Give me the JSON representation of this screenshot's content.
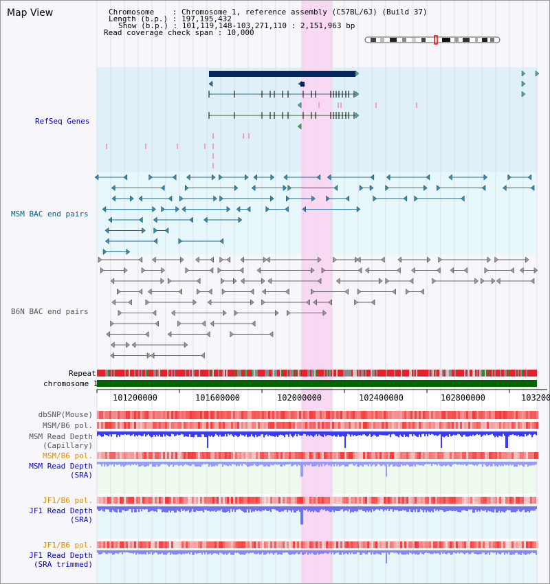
{
  "header": {
    "title": "Map View",
    "info": {
      "chromosome_key": "Chromosome",
      "chromosome_value": "Chromosome 1, reference assembly (C57BL/6J) (Build 37)",
      "length_key": "Length (b.p.)",
      "length_value": "197,195,432",
      "show_key": "Show (b.p.)",
      "show_value": "101,119,148-103,271,110 : 2,151,963 bp",
      "span_key": "Read coverage check span",
      "span_value": "10,000"
    }
  },
  "tracks": {
    "refseq": "RefSeq Genes",
    "msm_bac": "MSM BAC end pairs",
    "b6n_bac": "B6N BAC end pairs",
    "repeat": "Repeat",
    "chromosome": "chromosome 1",
    "dbsnp": "dbSNP(Mouse)",
    "msm_pol": "MSM/B6 pol.",
    "msm_depth_cap_1": "MSM Read Depth",
    "msm_depth_cap_2": "(Capillary)",
    "msm_pol_2": "MSM/B6 pol.",
    "msm_depth_sra_1": "MSM Read Depth",
    "msm_depth_sra_2": "(SRA)",
    "jf1_pol": "JF1/B6 pol.",
    "jf1_depth_1": "JF1 Read Depth",
    "jf1_depth_2": "(SRA)",
    "jf1_pol_2": "JF1/B6 pol.",
    "jf1_trim_1": "JF1 Read Depth",
    "jf1_trim_2": "(SRA trimmed)"
  },
  "axis": {
    "ticks": [
      "101200000",
      "101600000",
      "102000000",
      "102400000",
      "102800000",
      "103200"
    ]
  },
  "colors": {
    "refseq_bg": "#dff0f8",
    "msm_bg": "#e6f8fb",
    "highlight": "#f8d8f2",
    "repeat_red": "#e8202a",
    "chrom_green": "#006400",
    "depth_blue": "#5252f0",
    "label_blue": "#0000c0",
    "label_teal": "#005e82",
    "label_gray": "#555555",
    "label_orange": "#d89000"
  }
}
